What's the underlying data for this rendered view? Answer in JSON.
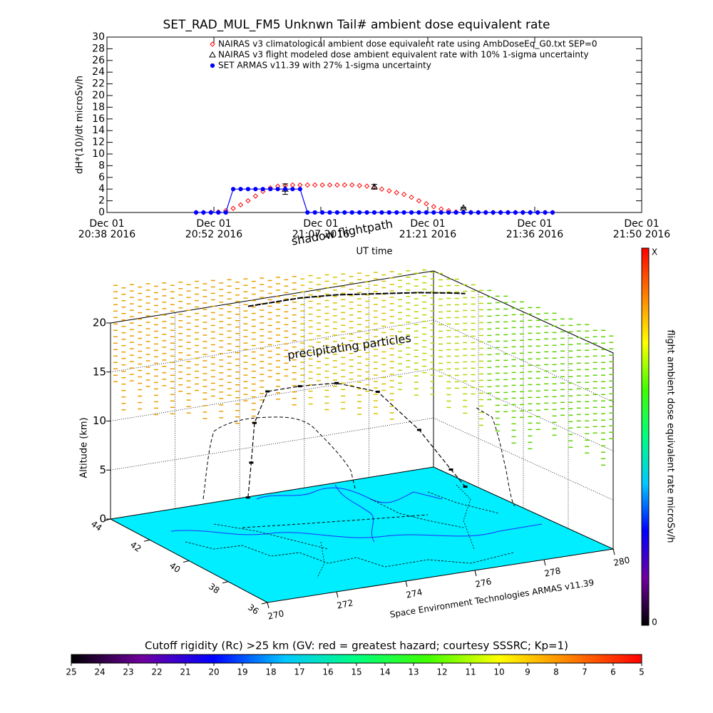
{
  "chart_data": [
    {
      "type": "line",
      "title": "SET_RAD_MUL_FM5 Unknwn Tail#  ambient dose equivalent rate",
      "ylabel": "dH*(10)/dt microSv/h",
      "xlabel": "UT time",
      "ylim": [
        0,
        30
      ],
      "yticks": [
        0,
        2,
        4,
        6,
        8,
        10,
        12,
        14,
        16,
        18,
        20,
        22,
        24,
        26,
        28,
        30
      ],
      "xlim": [
        "2016-12-01 20:38",
        "2016-12-01 21:50"
      ],
      "xticks": [
        {
          "value": "2016-12-01 20:38",
          "label": [
            "Dec 01",
            "20:38 2016"
          ]
        },
        {
          "value": "2016-12-01 20:52:24",
          "label": [
            "Dec 01",
            "20:52 2016"
          ]
        },
        {
          "value": "2016-12-01 21:06:48",
          "label": [
            "Dec 01",
            "21:07 2016"
          ]
        },
        {
          "value": "2016-12-01 21:21:12",
          "label": [
            "Dec 01",
            "21:21 2016"
          ]
        },
        {
          "value": "2016-12-01 21:35:36",
          "label": [
            "Dec 01",
            "21:36 2016"
          ]
        },
        {
          "value": "2016-12-01 21:50",
          "label": [
            "Dec 01",
            "21:50 2016"
          ]
        }
      ],
      "x": [
        "2016-12-01 20:50",
        "2016-12-01 20:51",
        "2016-12-01 20:52",
        "2016-12-01 20:53",
        "2016-12-01 20:54",
        "2016-12-01 20:55",
        "2016-12-01 20:56",
        "2016-12-01 20:57",
        "2016-12-01 20:58",
        "2016-12-01 20:59",
        "2016-12-01 21:00",
        "2016-12-01 21:01",
        "2016-12-01 21:02",
        "2016-12-01 21:03",
        "2016-12-01 21:04",
        "2016-12-01 21:05",
        "2016-12-01 21:06",
        "2016-12-01 21:07",
        "2016-12-01 21:08",
        "2016-12-01 21:09",
        "2016-12-01 21:10",
        "2016-12-01 21:11",
        "2016-12-01 21:12",
        "2016-12-01 21:13",
        "2016-12-01 21:14",
        "2016-12-01 21:15",
        "2016-12-01 21:16",
        "2016-12-01 21:17",
        "2016-12-01 21:18",
        "2016-12-01 21:19",
        "2016-12-01 21:20",
        "2016-12-01 21:21",
        "2016-12-01 21:22",
        "2016-12-01 21:23",
        "2016-12-01 21:24",
        "2016-12-01 21:25",
        "2016-12-01 21:26",
        "2016-12-01 21:27",
        "2016-12-01 21:28",
        "2016-12-01 21:29",
        "2016-12-01 21:30",
        "2016-12-01 21:31",
        "2016-12-01 21:32",
        "2016-12-01 21:33",
        "2016-12-01 21:34",
        "2016-12-01 21:35",
        "2016-12-01 21:36",
        "2016-12-01 21:37",
        "2016-12-01 21:38"
      ],
      "series": [
        {
          "name": "NAIRAS v3 climatological ambient dose equivalent rate using AmbDoseEq_G0.txt SEP=0",
          "color": "#ff0000",
          "marker": "diamond",
          "values": [
            0,
            0,
            0,
            0.1,
            0.3,
            0.7,
            1.3,
            2.0,
            2.8,
            3.6,
            4.2,
            4.5,
            4.6,
            4.7,
            4.7,
            4.7,
            4.7,
            4.7,
            4.7,
            4.7,
            4.7,
            4.7,
            4.6,
            4.5,
            4.3,
            4.0,
            3.7,
            3.4,
            3.1,
            2.6,
            2.0,
            1.5,
            1.0,
            0.6,
            0.3,
            0.1,
            0,
            0,
            0,
            0,
            0,
            0,
            0,
            0,
            0,
            0,
            0,
            0,
            0
          ]
        },
        {
          "name": "NAIRAS v3 flight modeled dose ambient equivalent rate with 10% 1-sigma uncertainty",
          "color": "#000000",
          "marker": "triangle",
          "x": [
            "2016-12-01 21:02",
            "2016-12-01 21:14",
            "2016-12-01 21:26"
          ],
          "values": [
            4.0,
            4.4,
            0.8
          ],
          "errors": [
            0.9,
            0.4,
            0.1
          ]
        },
        {
          "name": "SET ARMAS v11.39 with 27% 1-sigma uncertainty",
          "color": "#0000ff",
          "marker": "circle",
          "line": true,
          "values": [
            0,
            0,
            0,
            0,
            0,
            4,
            4,
            4,
            4,
            4,
            4,
            4,
            4,
            4,
            4,
            0,
            0,
            0,
            0,
            0,
            0,
            0,
            0,
            0,
            0,
            0,
            0,
            0,
            0,
            0,
            0,
            0,
            0,
            0,
            0,
            0,
            0,
            0,
            0,
            0,
            0,
            0,
            0,
            0,
            0,
            0,
            0,
            0,
            0
          ]
        }
      ]
    },
    {
      "type": "scatter3d",
      "zlabel": "Altitude (km)",
      "zlim": [
        0,
        20
      ],
      "zticks": [
        0,
        5,
        10,
        15,
        20
      ],
      "latlim": [
        36,
        44
      ],
      "latticks": [
        36,
        38,
        40,
        42,
        44
      ],
      "lonlim": [
        270,
        280
      ],
      "lonticks": [
        270,
        272,
        274,
        276,
        278,
        280
      ],
      "annotations": [
        "shadow flightpath",
        "precipitating particles"
      ],
      "caption": "Space Environment Technologies ARMAS v11.39",
      "series": [
        {
          "color": "#000000",
          "lat": [
            43.6,
            43.6,
            43.6,
            43.6,
            43.6,
            43.4,
            43.0,
            42.6,
            42.2,
            42.0
          ],
          "lon": [
            274.0,
            274.1,
            274.2,
            274.6,
            275.6,
            276.6,
            277.6,
            278.6,
            279.3,
            279.6
          ],
          "alt": [
            0.5,
            4,
            8,
            11,
            11,
            11,
            10,
            6,
            2,
            0.3
          ]
        }
      ]
    },
    {
      "type": "colorbar",
      "orientation": "vertical",
      "label": "flight ambient dose equivalent rate microSv/h",
      "ticks": [
        0,
        "X"
      ],
      "colors": [
        "#000000",
        "#7000a0",
        "#0000ff",
        "#00c8ff",
        "#00ff80",
        "#40ff00",
        "#ffff00",
        "#ff8000",
        "#ff0000"
      ]
    },
    {
      "type": "colorbar",
      "orientation": "horizontal",
      "title": "Cutoff rigidity (Rc) >25 km (GV: red = greatest hazard; courtesy SSSRC; Kp=1)",
      "clim": [
        25,
        5
      ],
      "ticks": [
        25,
        24,
        23,
        22,
        21,
        20,
        19,
        18,
        17,
        16,
        15,
        14,
        13,
        12,
        11,
        10,
        9,
        8,
        7,
        6,
        5
      ],
      "colors": [
        "#000000",
        "#7000a0",
        "#0000ff",
        "#00c8ff",
        "#00ff80",
        "#40ff00",
        "#ffff00",
        "#ff8000",
        "#ff0000"
      ]
    }
  ]
}
